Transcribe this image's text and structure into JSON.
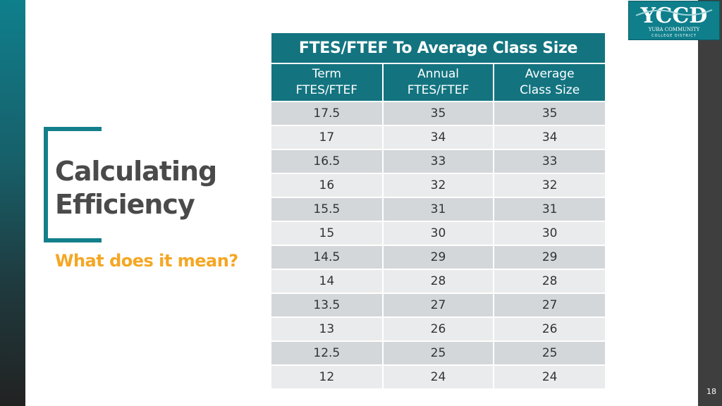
{
  "slide": {
    "title_line1": "Calculating",
    "title_line2": "Efficiency",
    "subtitle": "What does it mean?",
    "page_number": "18"
  },
  "logo": {
    "text": "YCCD",
    "tagline_1": "YUBA COMMUNITY",
    "tagline_2": "COLLEGE DISTRICT"
  },
  "table": {
    "caption": "FTES/FTEF To Average Class Size",
    "headers": [
      [
        "Term",
        "FTES/FTEF"
      ],
      [
        "Annual",
        "FTES/FTEF"
      ],
      [
        "Average",
        "Class Size"
      ]
    ],
    "rows": [
      [
        "17.5",
        "35",
        "35"
      ],
      [
        "17",
        "34",
        "34"
      ],
      [
        "16.5",
        "33",
        "33"
      ],
      [
        "16",
        "32",
        "32"
      ],
      [
        "15.5",
        "31",
        "31"
      ],
      [
        "15",
        "30",
        "30"
      ],
      [
        "14.5",
        "29",
        "29"
      ],
      [
        "14",
        "28",
        "28"
      ],
      [
        "13.5",
        "27",
        "27"
      ],
      [
        "13",
        "26",
        "26"
      ],
      [
        "12.5",
        "25",
        "25"
      ],
      [
        "12",
        "24",
        "24"
      ]
    ]
  },
  "colors": {
    "teal": "#137480",
    "accent": "#f5a623",
    "title_text": "#4a4a4a",
    "row_dark": "#d3d7da",
    "row_light": "#eaebec"
  }
}
